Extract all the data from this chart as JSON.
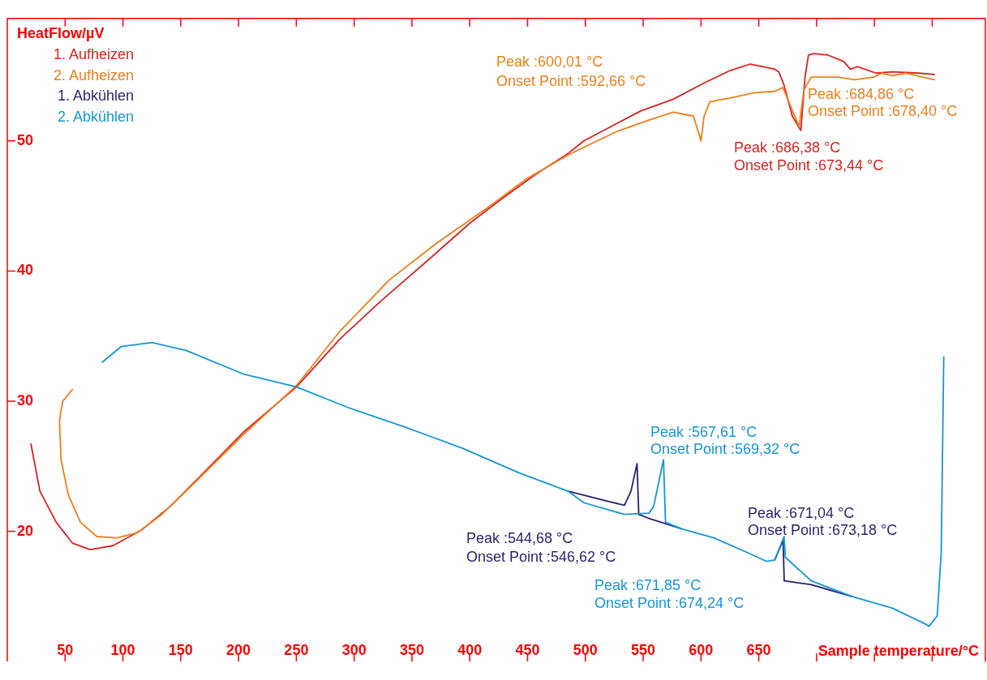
{
  "chart_data": {
    "type": "line",
    "ylabel": "HeatFlow/µV",
    "xlabel": "Sample temperature/°C",
    "xlim": [
      0,
      846
    ],
    "ylim": [
      10,
      59.4
    ],
    "xticks": [
      50,
      100,
      150,
      200,
      250,
      300,
      350,
      400,
      450,
      500,
      550,
      600,
      650,
      {
        "value": 700,
        "label": null
      },
      {
        "value": 750,
        "label": null
      },
      {
        "value": 800,
        "label": null
      }
    ],
    "yticks": [
      20,
      30,
      40,
      50
    ],
    "grid": false,
    "legend": "top left",
    "marker": "none",
    "line_style": "solid",
    "series": [
      {
        "name": "1. Aufheizen",
        "color": "#dd2222",
        "x": [
          20.5,
          28.2,
          42.3,
          56.3,
          71.8,
          91.4,
          116,
          140.7,
          168.7,
          204,
          250.1,
          288,
          323.2,
          358.3,
          400.4,
          428.5,
          456.6,
          484.7,
          498.7,
          520,
          548,
          576,
          604,
          625.2,
          642.7,
          664,
          667.3,
          671.8,
          679,
          686.4,
          690,
          693,
          697.7,
          709.4,
          723.4,
          729.3,
          735.2,
          751.5,
          765.6,
          788.8,
          801.9
        ],
        "values": [
          26.7,
          23.1,
          20.7,
          19.1,
          18.6,
          18.9,
          20.1,
          21.9,
          24.4,
          27.6,
          31.1,
          34.8,
          37.7,
          40.4,
          43.7,
          45.6,
          47.4,
          49,
          50,
          51,
          52.3,
          53.2,
          54.5,
          55.4,
          55.9,
          55.5,
          55.3,
          54.3,
          51.9,
          50.8,
          54.9,
          56.6,
          56.7,
          56.6,
          56.1,
          55.5,
          55.7,
          55.2,
          55.3,
          55.2,
          55.1
        ]
      },
      {
        "name": "2. Aufheizen",
        "color": "#f07f1a",
        "x": [
          56.3,
          47.9,
          45.1,
          46.5,
          52.8,
          63.3,
          77.5,
          95,
          112.6,
          133.6,
          161.7,
          203.8,
          250.1,
          288,
          330.2,
          372.3,
          414.4,
          449.5,
          484.7,
          498.7,
          526.8,
          555,
          576,
          593.5,
          600,
          602.7,
          607.6,
          625.2,
          646.2,
          663.8,
          670.8,
          684.9,
          689,
          695.4,
          718.5,
          732.7,
          749.5,
          756.5,
          765.6,
          777.5,
          801.9
        ],
        "values": [
          30.9,
          30,
          28.5,
          25.5,
          22.8,
          20.7,
          19.6,
          19.5,
          19.9,
          21.3,
          23.7,
          27.4,
          31.2,
          35.4,
          39.3,
          42.2,
          44.8,
          47.1,
          48.9,
          49.5,
          50.7,
          51.6,
          52.2,
          51.9,
          50,
          51.9,
          53,
          53.3,
          53.7,
          53.8,
          54.1,
          51.1,
          53.9,
          54.9,
          54.9,
          54.7,
          54.9,
          55.2,
          55,
          55.2,
          54.7
        ]
      },
      {
        "name": "1. Abkühlen",
        "color": "#2a1f6e",
        "x": [
          484.7,
          519.8,
          533.8,
          539.5,
          544.7,
          545.5,
          546.2,
          555,
          583.1,
          611.2,
          663.8,
          671,
          672,
          695.4,
          730.5
        ],
        "values": [
          23.1,
          22.3,
          22,
          23.1,
          25.2,
          23.1,
          21.3,
          21,
          20.2,
          null,
          17.8,
          19.3,
          16.2,
          15.9,
          15
        ]
      },
      {
        "name": "2. Abkühlen",
        "color": "#1596d9",
        "x": [
          82.3,
          98.5,
          125.1,
          154.6,
          203.8,
          250.1,
          295.1,
          344.3,
          393.4,
          442.6,
          484.7,
          498.7,
          533.8,
          555,
          559,
          567.6,
          569.3,
          583.1,
          611.2,
          639.3,
          656.6,
          663.8,
          671.9,
          673,
          695.4,
          730.5,
          765.6,
          793.7,
          797.2,
          804.3,
          807.8,
          810
        ],
        "values": [
          33,
          34.2,
          34.5,
          33.9,
          32.1,
          31.1,
          29.5,
          28,
          26.4,
          24.5,
          23.1,
          22.2,
          21.3,
          21.4,
          21.9,
          25.5,
          20.7,
          20.2,
          19.5,
          18.4,
          17.7,
          17.8,
          19.6,
          18,
          16.2,
          15,
          14.1,
          12.9,
          12.7,
          13.5,
          18.3,
          33.4
        ]
      }
    ],
    "annotations": [
      "Peak :600,01 °C",
      "Onset Point :592,66 °C",
      "Peak :684,86 °C",
      "Onset Point :678,40 °C",
      "Peak :686,38 °C",
      "Onset Point :673,44 °C",
      "Peak :567,61 °C",
      "Onset Point :569,32 °C",
      "Peak :544,68 °C",
      "Onset Point :546,62 °C",
      "Peak :671,85 °C",
      "Onset Point :674,24 °C",
      "Peak :671,04 °C",
      "Onset Point :673,18 °C"
    ]
  }
}
